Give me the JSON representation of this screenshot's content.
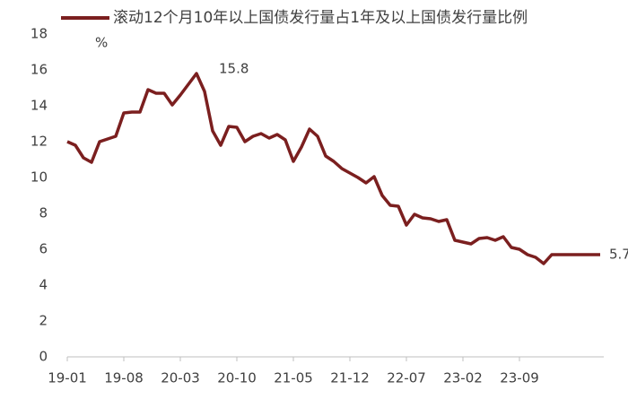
{
  "chart_data": {
    "type": "line",
    "legend_title": null,
    "y_label": "%",
    "categories": [
      "19-01",
      null,
      null,
      null,
      null,
      null,
      null,
      "19-08",
      null,
      null,
      null,
      null,
      null,
      null,
      "20-03",
      null,
      null,
      null,
      null,
      null,
      null,
      "20-10",
      null,
      null,
      null,
      null,
      null,
      null,
      "21-05",
      null,
      null,
      null,
      null,
      null,
      null,
      "21-12",
      null,
      null,
      null,
      null,
      null,
      null,
      "22-07",
      null,
      null,
      null,
      null,
      null,
      null,
      "23-02",
      null,
      null,
      null,
      null,
      null,
      null,
      "23-09",
      null,
      null,
      null,
      null,
      null,
      null,
      null,
      null,
      null,
      null
    ],
    "series": [
      {
        "name": "滚动12个月10年以上国债发行量占1年及以上国债发行量比例",
        "color": "#7b1f1f",
        "values": [
          12.0,
          11.8,
          11.1,
          10.85,
          12.0,
          12.15,
          12.3,
          13.6,
          13.65,
          13.65,
          14.9,
          14.7,
          14.7,
          14.05,
          14.6,
          15.2,
          15.8,
          14.8,
          12.6,
          11.8,
          12.85,
          12.8,
          12.0,
          12.3,
          12.45,
          12.2,
          12.4,
          12.1,
          10.9,
          11.7,
          12.7,
          12.3,
          11.2,
          10.9,
          10.5,
          10.25,
          10.0,
          9.7,
          10.05,
          9.0,
          8.45,
          8.4,
          7.35,
          7.95,
          7.75,
          7.7,
          7.55,
          7.65,
          6.5,
          6.4,
          6.3,
          6.6,
          6.65,
          6.5,
          6.7,
          6.1,
          6.0,
          5.7,
          5.55,
          5.2,
          5.7,
          5.7,
          5.7,
          5.7,
          5.7,
          5.7,
          5.7
        ],
        "value_labels": [
          null,
          null,
          null,
          null,
          null,
          null,
          null,
          null,
          null,
          null,
          null,
          null,
          null,
          null,
          null,
          null,
          "15.8",
          null,
          null,
          null,
          null,
          null,
          null,
          null,
          null,
          null,
          null,
          null,
          null,
          null,
          null,
          null,
          null,
          null,
          null,
          null,
          null,
          null,
          null,
          null,
          null,
          null,
          null,
          null,
          null,
          null,
          null,
          null,
          null,
          null,
          null,
          null,
          null,
          null,
          null,
          null,
          null,
          null,
          null,
          null,
          null,
          null,
          null,
          null,
          null,
          null,
          "5.7"
        ]
      }
    ],
    "ylim": [
      0,
      18
    ],
    "yticks": [
      0,
      2,
      4,
      6,
      8,
      10,
      12,
      14,
      16,
      18
    ],
    "grid": false
  }
}
